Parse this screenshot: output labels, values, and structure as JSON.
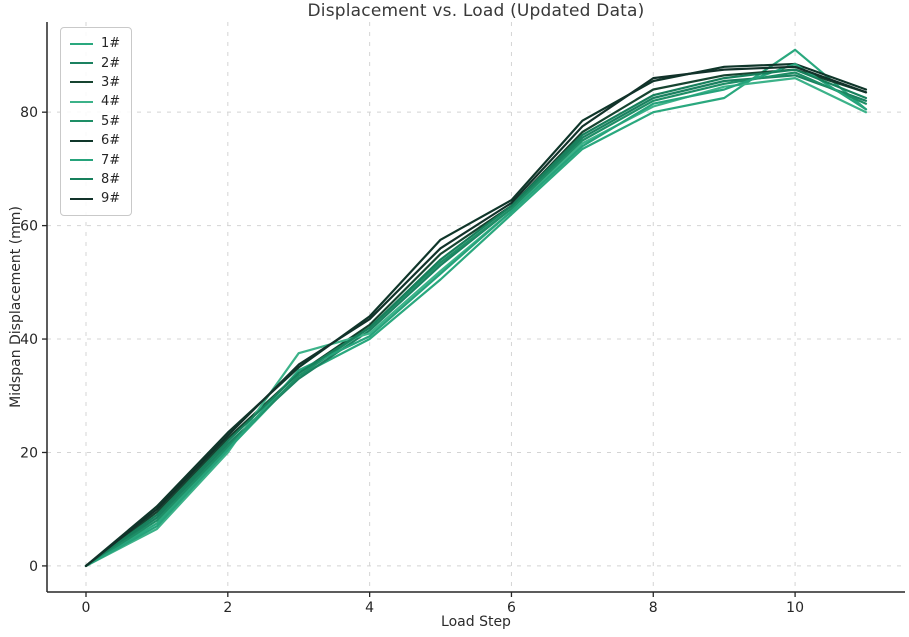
{
  "chart_data": {
    "type": "line",
    "title": "Displacement vs. Load (Updated Data)",
    "xlabel": "Load Step",
    "ylabel": "Midspan Displacement (mm)",
    "x": [
      0,
      1,
      2,
      3,
      4,
      5,
      6,
      7,
      8,
      9,
      10,
      11
    ],
    "xticks": [
      0,
      2,
      4,
      6,
      8,
      10
    ],
    "yticks": [
      0,
      20,
      40,
      60,
      80
    ],
    "xlim": [
      -0.55,
      11.55
    ],
    "ylim": [
      -4.6,
      95.9
    ],
    "grid": true,
    "grid_style": "dashed",
    "grid_color": "#d4d4d4",
    "axis_color": "#262626",
    "background": "#ffffff",
    "legend_position": "upper-left",
    "series": [
      {
        "name": "1#",
        "color": "#2aa87e",
        "values": [
          0,
          7.5,
          20.5,
          33.5,
          40,
          50.5,
          62,
          73.5,
          80,
          82.5,
          91,
          80.5
        ]
      },
      {
        "name": "2#",
        "color": "#1b8160",
        "values": [
          0,
          8.5,
          21.5,
          33,
          41.5,
          53,
          63,
          75.5,
          82.5,
          85.5,
          86.5,
          82
        ]
      },
      {
        "name": "3#",
        "color": "#164430",
        "values": [
          0,
          9.5,
          22.5,
          34,
          42.5,
          55,
          63.5,
          76.5,
          84,
          86.5,
          87.5,
          83.5
        ]
      },
      {
        "name": "4#",
        "color": "#3cb289",
        "values": [
          0,
          6.5,
          20,
          37.5,
          41,
          52,
          62.5,
          74.5,
          81,
          84.5,
          86,
          80
        ]
      },
      {
        "name": "5#",
        "color": "#1e8e66",
        "values": [
          0,
          8,
          21,
          33.5,
          42,
          53.5,
          63,
          75,
          82,
          85,
          87,
          81.5
        ]
      },
      {
        "name": "6#",
        "color": "#0f362a",
        "values": [
          0,
          10.5,
          23.5,
          35,
          44,
          57.5,
          64.5,
          78.5,
          85.5,
          88,
          88.5,
          84
        ]
      },
      {
        "name": "7#",
        "color": "#26a37b",
        "values": [
          0,
          7,
          20.5,
          34.5,
          40.5,
          51.5,
          62.5,
          74,
          81.5,
          84,
          88.5,
          80.5
        ]
      },
      {
        "name": "8#",
        "color": "#17805c",
        "values": [
          0,
          9,
          22,
          34,
          42,
          54,
          63.5,
          76,
          83,
          86,
          87.5,
          82.5
        ]
      },
      {
        "name": "9#",
        "color": "#12322a",
        "values": [
          0,
          10,
          23,
          35.5,
          43.5,
          56,
          64,
          77.5,
          86,
          87.5,
          88,
          83.5
        ]
      }
    ]
  }
}
